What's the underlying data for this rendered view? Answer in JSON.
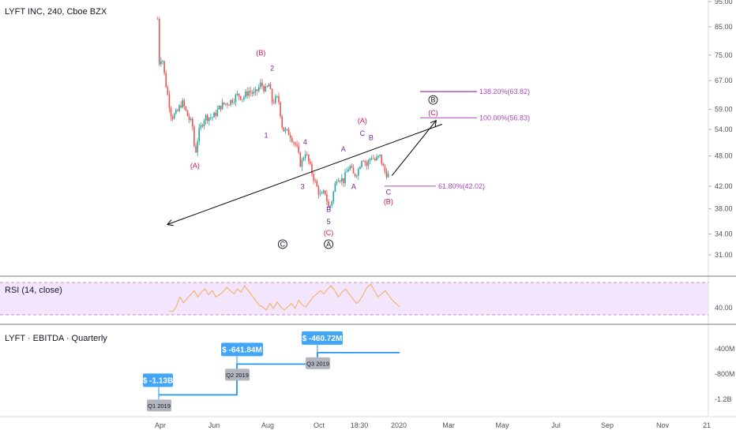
{
  "colors": {
    "candle_up": "#26a69a",
    "candle_down": "#ef5350",
    "wave_red": "#c2185b",
    "wave_purple": "#7b1fa2",
    "fib": "#ab47bc",
    "rsi_line": "#f7a64a",
    "rsi_band": "#f3e5fb",
    "rsi_band_border": "#9c27b0",
    "ebitda_line": "#2196f3",
    "badge_blue": "#42a5f5",
    "badge_grey": "#b2b5be"
  },
  "chart_data": [
    {
      "type": "candlestick",
      "title": "LYFT INC, 240, Cboe BZX",
      "price_axis": [
        "95.00",
        "85.00",
        "75.00",
        "67.00",
        "59.00",
        "54.00",
        "48.00",
        "42.00",
        "38.00",
        "34.00",
        "31.00"
      ],
      "time_axis": [
        "Apr",
        "Jun",
        "Aug",
        "Oct",
        "18:30",
        "2020",
        "Mar",
        "May",
        "Jul",
        "Sep",
        "Nov",
        "21"
      ],
      "close_path": [
        [
          "Mar 29",
          88
        ],
        [
          "Mar 30",
          72
        ],
        [
          "Apr 3",
          75
        ],
        [
          "Apr 6",
          68
        ],
        [
          "Apr 10",
          62
        ],
        [
          "Apr 14",
          57
        ],
        [
          "Apr 20",
          58
        ],
        [
          "Apr 26",
          61
        ],
        [
          "May 3",
          57
        ],
        [
          "May 8",
          55
        ],
        [
          "May 11",
          48
        ],
        [
          "May 15",
          53
        ],
        [
          "May 22",
          57
        ],
        [
          "Jun 1",
          57
        ],
        [
          "Jun 10",
          60
        ],
        [
          "Jun 20",
          61
        ],
        [
          "Jun 30",
          63
        ],
        [
          "Jul 5",
          62
        ],
        [
          "Jul 12",
          64
        ],
        [
          "Jul 19",
          63
        ],
        [
          "Jul 26",
          66
        ],
        [
          "Aug 1",
          64
        ],
        [
          "Aug 4",
          66
        ],
        [
          "Aug 8",
          61
        ],
        [
          "Aug 15",
          62
        ],
        [
          "Aug 20",
          54
        ],
        [
          "Aug 28",
          53
        ],
        [
          "Sep 5",
          50
        ],
        [
          "Sep 10",
          46
        ],
        [
          "Sep 15",
          49
        ],
        [
          "Sep 22",
          45
        ],
        [
          "Sep 28",
          42
        ],
        [
          "Oct 3",
          40
        ],
        [
          "Oct 8",
          41
        ],
        [
          "Oct 12",
          38
        ],
        [
          "Oct 15",
          39
        ],
        [
          "Oct 22",
          44
        ],
        [
          "Oct 29",
          43
        ],
        [
          "Nov 5",
          46
        ],
        [
          "Nov 10",
          44
        ],
        [
          "Nov 15",
          45
        ],
        [
          "Nov 20",
          48
        ],
        [
          "Nov 25",
          46
        ],
        [
          "Nov 30",
          48
        ],
        [
          "Dec 5",
          47
        ],
        [
          "Dec 10",
          48
        ],
        [
          "Dec 15",
          45
        ],
        [
          "Dec 20",
          44
        ]
      ],
      "fib_levels": [
        {
          "label": "138.20%(63.82)",
          "value": 63.82
        },
        {
          "label": "100.00%(56.83)",
          "value": 56.83
        },
        {
          "label": "61.80%(42.02)",
          "value": 42.02
        }
      ],
      "wave_labels": [
        {
          "text": "(A)",
          "date": "May 11",
          "price": 45.5,
          "color": "red"
        },
        {
          "text": "(B)",
          "date": "Jul 26",
          "price": 75,
          "color": "red"
        },
        {
          "text": "2",
          "date": "Aug 8",
          "price": 70,
          "color": "purple"
        },
        {
          "text": "1",
          "date": "Aug 1",
          "price": 52,
          "color": "purple"
        },
        {
          "text": "4",
          "date": "Sep 15",
          "price": 50.5,
          "color": "purple"
        },
        {
          "text": "3",
          "date": "Sep 12",
          "price": 41.5,
          "color": "purple"
        },
        {
          "text": "5",
          "date": "Oct 12",
          "price": 35.5,
          "color": "purple"
        },
        {
          "text": "(C)",
          "date": "Oct 12",
          "price": 33.8,
          "color": "red"
        },
        {
          "text": "A",
          "date": "Oct 29",
          "price": 49,
          "color": "purple"
        },
        {
          "text": "B",
          "date": "Oct 12",
          "price": 37.5,
          "color": "purple"
        },
        {
          "text": "(A)",
          "date": "Nov 20",
          "price": 55.5,
          "color": "red"
        },
        {
          "text": "C",
          "date": "Nov 20",
          "price": 52.5,
          "color": "purple"
        },
        {
          "text": "A",
          "date": "Nov 10",
          "price": 41.5,
          "color": "purple"
        },
        {
          "text": "B",
          "date": "Nov 30",
          "price": 51.5,
          "color": "purple"
        },
        {
          "text": "C",
          "date": "Dec 20",
          "price": 40.5,
          "color": "purple"
        },
        {
          "text": "(B)",
          "date": "Dec 20",
          "price": 38.8,
          "color": "red"
        },
        {
          "text": "(C)",
          "date": "Feb 10",
          "price": 57.5,
          "color": "red"
        }
      ],
      "circled_labels": [
        {
          "text": "A",
          "date": "Oct 12",
          "price": 32.5
        },
        {
          "text": "B",
          "date": "Feb 10",
          "price": 61.5
        },
        {
          "text": "C",
          "date": "Aug 20",
          "price": 32.5
        }
      ],
      "projection": [
        [
          "Dec 24",
          44
        ],
        [
          "Feb 13",
          56
        ],
        [
          "Apr 10",
          35.5
        ]
      ]
    },
    {
      "type": "line",
      "title": "RSI (14, close)",
      "axis_label": "40.00",
      "band": [
        30,
        70
      ],
      "values": [
        35,
        34,
        40,
        52,
        45,
        50,
        55,
        60,
        52,
        58,
        62,
        55,
        60,
        52,
        55,
        58,
        64,
        60,
        56,
        62,
        58,
        66,
        60,
        54,
        48,
        42,
        40,
        36,
        44,
        38,
        46,
        40,
        36,
        40,
        44,
        38,
        48,
        42,
        40,
        46,
        52,
        56,
        60,
        56,
        62,
        66,
        60,
        52,
        58,
        62,
        56,
        50,
        44,
        48,
        56,
        64,
        68,
        60,
        52,
        56,
        60,
        54,
        48,
        44,
        40
      ]
    },
    {
      "type": "step",
      "title": "LYFT · EBITDA · Quarterly",
      "axis_labels": [
        "-400M",
        "-800M",
        "-1.2B"
      ],
      "points": [
        {
          "quarter": "Q1 2019",
          "value_label": "$ -1.13B",
          "value": -1130
        },
        {
          "quarter": "Q2 2019",
          "value_label": "$ -641.84M",
          "value": -641.84
        },
        {
          "quarter": "Q3 2019",
          "value_label": "$ -460.72M",
          "value": -460.72
        }
      ]
    }
  ]
}
